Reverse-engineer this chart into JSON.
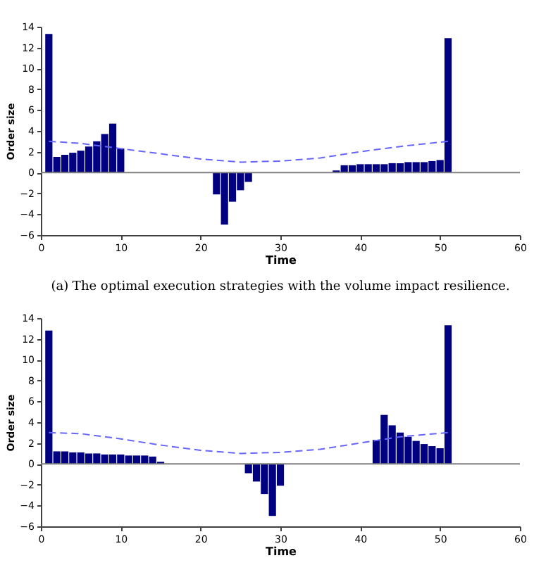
{
  "chart_data": [
    {
      "type": "bar",
      "xlabel": "Time",
      "ylabel": "Order size",
      "annotations": [
        "(a) The optimal execution strategies with the volume impact resilience."
      ],
      "xlim": [
        0,
        60
      ],
      "xticks": [
        0,
        10,
        20,
        30,
        40,
        50,
        60
      ],
      "ylim": [
        -6,
        14
      ],
      "yticks": [
        -6,
        -4,
        -2,
        0,
        2,
        4,
        6,
        8,
        10,
        12,
        14
      ],
      "grid": false,
      "x": [
        1,
        2,
        3,
        4,
        5,
        6,
        7,
        8,
        9,
        10,
        11,
        12,
        13,
        14,
        15,
        16,
        17,
        18,
        19,
        20,
        21,
        22,
        23,
        24,
        25,
        26,
        27,
        28,
        29,
        30,
        31,
        32,
        33,
        34,
        35,
        36,
        37,
        38,
        39,
        40,
        41,
        42,
        43,
        44,
        45,
        46,
        47,
        48,
        49,
        50,
        51
      ],
      "ref_lines": [
        {
          "axis": "y",
          "value": 0,
          "color": "#808080"
        }
      ],
      "series": [
        {
          "color": "#000080",
          "values": [
            13.3,
            1.5,
            1.7,
            1.9,
            2.1,
            2.5,
            3.0,
            3.7,
            4.7,
            2.3,
            0,
            0,
            0,
            0,
            0,
            0,
            0,
            0,
            0,
            0,
            0,
            -2.1,
            -5.0,
            -2.8,
            -1.7,
            -0.9,
            0,
            0,
            0,
            0,
            0,
            0,
            0,
            0,
            0,
            0,
            0.2,
            0.7,
            0.7,
            0.8,
            0.8,
            0.8,
            0.8,
            0.9,
            0.9,
            1.0,
            1.0,
            1.0,
            1.1,
            1.2,
            12.9
          ]
        },
        {
          "type": "line",
          "color": "#6666ff",
          "line_style": "dashed",
          "x": [
            1,
            5,
            10,
            15,
            20,
            25,
            30,
            35,
            40,
            45,
            51
          ],
          "values": [
            3.0,
            2.8,
            2.3,
            1.8,
            1.3,
            1.0,
            1.1,
            1.4,
            2.0,
            2.5,
            3.0
          ]
        }
      ]
    },
    {
      "type": "bar",
      "xlabel": "Time",
      "ylabel": "Order size",
      "xlim": [
        0,
        60
      ],
      "xticks": [
        0,
        10,
        20,
        30,
        40,
        50,
        60
      ],
      "ylim": [
        -6,
        14
      ],
      "yticks": [
        -6,
        -4,
        -2,
        0,
        2,
        4,
        6,
        8,
        10,
        12,
        14
      ],
      "grid": false,
      "x": [
        1,
        2,
        3,
        4,
        5,
        6,
        7,
        8,
        9,
        10,
        11,
        12,
        13,
        14,
        15,
        16,
        17,
        18,
        19,
        20,
        21,
        22,
        23,
        24,
        25,
        26,
        27,
        28,
        29,
        30,
        31,
        32,
        33,
        34,
        35,
        36,
        37,
        38,
        39,
        40,
        41,
        42,
        43,
        44,
        45,
        46,
        47,
        48,
        49,
        50,
        51
      ],
      "ref_lines": [
        {
          "axis": "y",
          "value": 0,
          "color": "#808080"
        }
      ],
      "series": [
        {
          "color": "#000080",
          "values": [
            12.8,
            1.2,
            1.2,
            1.1,
            1.1,
            1.0,
            1.0,
            0.9,
            0.9,
            0.9,
            0.8,
            0.8,
            0.8,
            0.7,
            0.2,
            0,
            0,
            0,
            0,
            0,
            0,
            0,
            0,
            0,
            0,
            -0.9,
            -1.7,
            -2.9,
            -5.0,
            -2.1,
            0,
            0,
            0,
            0,
            0,
            0,
            0,
            0,
            0,
            0,
            0,
            2.3,
            4.7,
            3.7,
            3.0,
            2.6,
            2.2,
            1.9,
            1.7,
            1.5,
            13.3
          ]
        },
        {
          "type": "line",
          "color": "#6666ff",
          "line_style": "dashed",
          "x": [
            1,
            5,
            10,
            15,
            20,
            25,
            30,
            35,
            40,
            45,
            51
          ],
          "values": [
            3.0,
            2.9,
            2.4,
            1.8,
            1.3,
            1.0,
            1.1,
            1.4,
            2.0,
            2.6,
            3.0
          ]
        }
      ]
    }
  ]
}
